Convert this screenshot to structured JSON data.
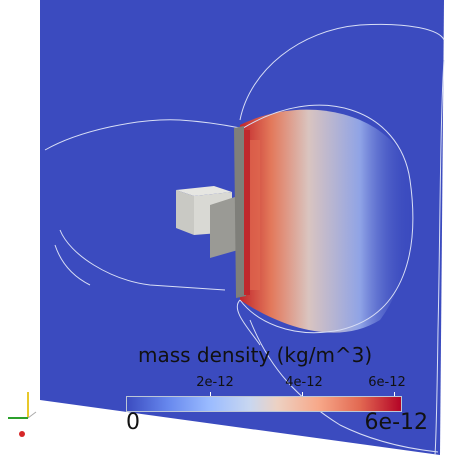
{
  "colorbar": {
    "title": "mass density (kg/m^3)",
    "ticks": [
      "2e-12",
      "4e-12",
      "6e-12"
    ],
    "min_label": "0",
    "max_label": "6e-12",
    "colormap": "cool-to-warm",
    "colors": [
      "#3b4cc0",
      "#9abbff",
      "#dddddd",
      "#f7a889",
      "#b40426"
    ]
  },
  "scene": {
    "background": "#ffffff",
    "slice_color": "#3b4bbf"
  },
  "axes_triad": {
    "x_color": "#d62728",
    "y_color": "#e8c82a",
    "z_color": "#2ca02c"
  }
}
